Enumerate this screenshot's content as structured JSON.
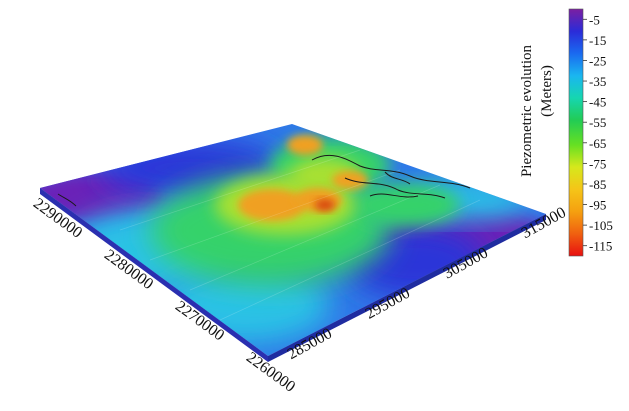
{
  "chart_data": {
    "type": "surface3d",
    "x_axis": {
      "ticks": [
        "285000",
        "295000",
        "305000",
        "315000"
      ],
      "values": [
        285000,
        295000,
        305000,
        315000
      ]
    },
    "y_axis": {
      "ticks": [
        "2290000",
        "2280000",
        "2270000",
        "2260000"
      ],
      "values": [
        2290000,
        2280000,
        2270000,
        2260000
      ]
    },
    "colorbar": {
      "title_line1": "Piezometric evolution",
      "title_line2": "(Meters)",
      "ticks": [
        "-5",
        "-15",
        "-25",
        "-35",
        "-45",
        "-55",
        "-65",
        "-75",
        "-85",
        "-95",
        "-105",
        "-115"
      ],
      "values": [
        -5,
        -15,
        -25,
        -35,
        -45,
        -55,
        -65,
        -75,
        -85,
        -95,
        -105,
        -115
      ],
      "range": [
        -120,
        0
      ],
      "colors_top_to_bottom": [
        "#7b1fa2",
        "#2b2bd8",
        "#1a6af0",
        "#1ab6f0",
        "#16d6b0",
        "#22cc55",
        "#66e022",
        "#d6e81c",
        "#f5c518",
        "#f5a010",
        "#f06010",
        "#e81010"
      ]
    },
    "surface_colors": {
      "low_drawdown": "#6a22b8",
      "deep_blue": "#2a36d8",
      "blue": "#2f78e8",
      "cyan": "#2cc2e6",
      "green": "#34d26a",
      "yellow_green": "#a8e030",
      "orange": "#f0a020",
      "red": "#d84a10"
    }
  }
}
